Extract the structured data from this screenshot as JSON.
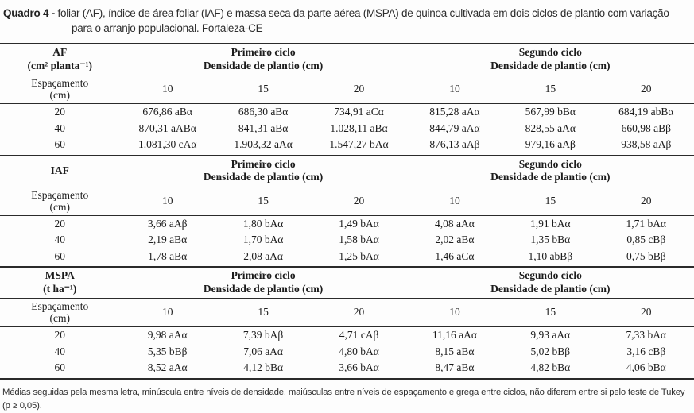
{
  "title": {
    "label": "Quadro 4 -",
    "text": "foliar (AF), índice de área foliar (IAF) e massa seca da parte aérea (MSPA) de quinoa cultivada em dois ciclos de plantio com variação para o arranjo populacional. Fortaleza-CE"
  },
  "table": {
    "labels": {
      "first_cycle": "Primeiro ciclo",
      "second_cycle": "Segundo ciclo",
      "density": "Densidade de plantio (cm)",
      "spacing": "Espaçamento",
      "spacing_unit": "(cm)"
    },
    "densities": [
      "10",
      "15",
      "20",
      "10",
      "15",
      "20"
    ],
    "sections": [
      {
        "name": "AF",
        "unit": "(cm² planta⁻¹)",
        "rows": [
          {
            "spacing": "20",
            "values": [
              "676,86 aBα",
              "686,30 aBα",
              "734,91 aCα",
              "815,28 aAα",
              "567,99 bBα",
              "684,19 abBα"
            ]
          },
          {
            "spacing": "40",
            "values": [
              "870,31 aABα",
              "841,31 aBα",
              "1.028,11 aBα",
              "844,79 aAα",
              "828,55 aAα",
              "660,98 aBβ"
            ]
          },
          {
            "spacing": "60",
            "values": [
              "1.081,30 cAα",
              "1.903,32 aAα",
              "1.547,27 bAα",
              "876,13 aAβ",
              "979,16 aAβ",
              "938,58 aAβ"
            ]
          }
        ]
      },
      {
        "name": "IAF",
        "unit": "",
        "rows": [
          {
            "spacing": "20",
            "values": [
              "3,66 aAβ",
              "1,80 bAα",
              "1,49 bAα",
              "4,08 aAα",
              "1,91 bAα",
              "1,71 bAα"
            ]
          },
          {
            "spacing": "40",
            "values": [
              "2,19 aBα",
              "1,70 bAα",
              "1,58 bAα",
              "2,02 aBα",
              "1,35 bBα",
              "0,85 cBβ"
            ]
          },
          {
            "spacing": "60",
            "values": [
              "1,78 aBα",
              "2,08 aAα",
              "1,25 bAα",
              "1,46 aCα",
              "1,10 abBβ",
              "0,75 bBβ"
            ]
          }
        ]
      },
      {
        "name": "MSPA",
        "unit": "(t ha⁻¹)",
        "rows": [
          {
            "spacing": "20",
            "values": [
              "9,98 aAα",
              "7,39 bAβ",
              "4,71 cAβ",
              "11,16 aAα",
              "9,93 aAα",
              "7,33 bAα"
            ]
          },
          {
            "spacing": "40",
            "values": [
              "5,35 bBβ",
              "7,06 aAα",
              "4,80 bAα",
              "8,15 aBα",
              "5,02 bBβ",
              "3,16 cBβ"
            ]
          },
          {
            "spacing": "60",
            "values": [
              "8,52 aAα",
              "4,12 bBα",
              "3,66 bAα",
              "8,47 aBα",
              "4,82 bBα",
              "4,06 bBα"
            ]
          }
        ]
      }
    ]
  },
  "footnote": "Médias seguidas pela mesma letra, minúscula entre níveis de densidade, maiúsculas entre níveis de espaçamento e grega entre ciclos, não diferem entre si pelo teste de Tukey (p ≥ 0,05)."
}
